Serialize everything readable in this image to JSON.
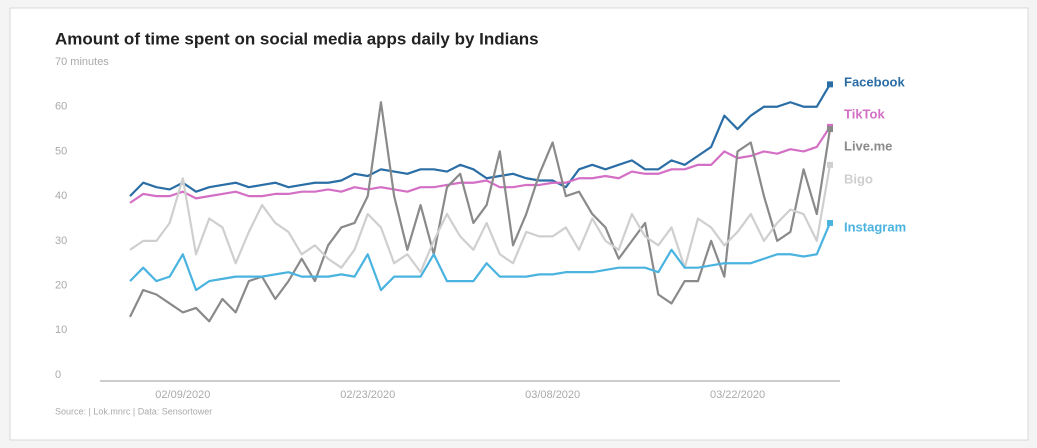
{
  "chart_data": {
    "type": "line",
    "title": "Amount of time spent on social media apps daily by Indians",
    "source": "Source: | Lok.mnrc | Data: Sensortower",
    "categories": [
      null,
      null,
      null,
      null,
      "02/09/2020",
      null,
      null,
      null,
      null,
      null,
      null,
      null,
      null,
      null,
      null,
      null,
      null,
      null,
      "02/23/2020",
      null,
      null,
      null,
      null,
      null,
      null,
      null,
      null,
      null,
      null,
      null,
      null,
      null,
      "03/08/2020",
      null,
      null,
      null,
      null,
      null,
      null,
      null,
      null,
      null,
      null,
      null,
      null,
      null,
      "03/22/2020",
      null,
      null,
      null,
      null,
      null,
      null,
      null
    ],
    "series": [
      {
        "name": "Facebook",
        "color": "#2b6ea6",
        "values": [
          40,
          43,
          42,
          41.5,
          43,
          41,
          42,
          42.5,
          43,
          42,
          42.5,
          43,
          42,
          42.5,
          43,
          43,
          43.5,
          45,
          44.5,
          46,
          45.5,
          45,
          46,
          46,
          45.5,
          47,
          46,
          44,
          44.5,
          45,
          44,
          43.5,
          43.5,
          42,
          46,
          47,
          46,
          47,
          48,
          46,
          46,
          48,
          47,
          49,
          51,
          58,
          55,
          58,
          60,
          60,
          61,
          60,
          60,
          65
        ]
      },
      {
        "name": "TikTok",
        "color": "#d46fc6",
        "values": [
          38.5,
          40.5,
          40,
          40,
          41,
          39.5,
          40,
          40.5,
          41,
          40,
          40,
          40.5,
          40.5,
          41,
          41,
          41.5,
          41,
          42,
          41.5,
          42,
          41.5,
          41,
          42,
          42,
          42.5,
          43,
          43,
          43.5,
          42,
          42,
          42.5,
          42.5,
          43,
          43,
          44,
          44,
          44.5,
          44,
          45.5,
          45,
          45,
          46,
          46,
          47,
          47,
          50,
          48.5,
          49,
          50,
          49.5,
          50.5,
          50,
          51,
          55.5
        ]
      },
      {
        "name": "Live.me",
        "color": "#8a8a8a",
        "values": [
          13,
          19,
          18,
          16,
          14,
          15,
          12,
          17,
          14,
          21,
          22,
          17,
          21,
          26,
          21,
          29,
          33,
          34,
          40,
          61,
          40,
          28,
          38,
          27,
          42,
          45,
          34,
          38,
          50,
          29,
          36,
          45,
          52,
          40,
          41,
          36,
          33,
          26,
          30,
          34,
          18,
          16,
          21,
          21,
          30,
          22,
          50,
          52,
          40,
          30,
          32,
          46,
          36,
          55
        ]
      },
      {
        "name": "Bigo",
        "color": "#cfcfcf",
        "values": [
          28,
          30,
          30,
          34,
          44,
          27,
          35,
          33,
          25,
          32,
          38,
          34,
          32,
          27,
          29,
          26,
          24,
          28,
          36,
          33,
          25,
          27,
          23,
          30,
          36,
          31,
          28,
          34,
          27,
          25,
          32,
          31,
          31,
          33,
          28,
          35,
          30,
          28,
          36,
          31,
          29,
          33,
          24,
          35,
          33,
          29,
          32,
          36,
          30,
          34,
          37,
          36,
          30,
          47
        ]
      },
      {
        "name": "Instagram",
        "color": "#4bb3df",
        "values": [
          21,
          24,
          21,
          22,
          27,
          19,
          21,
          21.5,
          22,
          22,
          22,
          22.5,
          23,
          22,
          22,
          22,
          22.5,
          22,
          27,
          19,
          22,
          22,
          22,
          27,
          21,
          21,
          21,
          25,
          22,
          22,
          22,
          22.5,
          22.5,
          23,
          23,
          23,
          23.5,
          24,
          24,
          24,
          23,
          28,
          24,
          24,
          24.5,
          25,
          25,
          25,
          26,
          27,
          27,
          26.5,
          27,
          34
        ]
      }
    ],
    "ylim": [
      0,
      70
    ],
    "yticks": [
      0,
      10,
      20,
      30,
      40,
      50,
      60,
      {
        "value": 70,
        "label": "70 minutes"
      }
    ],
    "grid": false
  }
}
